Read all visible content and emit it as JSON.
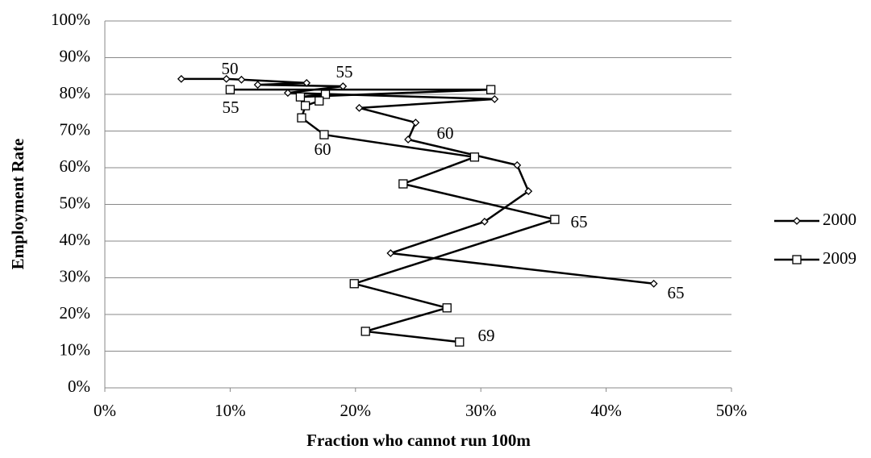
{
  "chart_data": {
    "type": "line-scatter",
    "x_label": "Fraction who cannot run 100m",
    "y_label": "Employment Rate",
    "xlim": [
      0,
      50
    ],
    "ylim": [
      0,
      100
    ],
    "xticks": [
      {
        "value": 0,
        "label": "0%"
      },
      {
        "value": 10,
        "label": "10%"
      },
      {
        "value": 20,
        "label": "20%"
      },
      {
        "value": 30,
        "label": "30%"
      },
      {
        "value": 40,
        "label": "40%"
      },
      {
        "value": 50,
        "label": "50%"
      }
    ],
    "yticks": [
      {
        "value": 0,
        "label": "0%"
      },
      {
        "value": 10,
        "label": "10%"
      },
      {
        "value": 20,
        "label": "20%"
      },
      {
        "value": 30,
        "label": "30%"
      },
      {
        "value": 40,
        "label": "40%"
      },
      {
        "value": 50,
        "label": "50%"
      },
      {
        "value": 60,
        "label": "60%"
      },
      {
        "value": 70,
        "label": "70%"
      },
      {
        "value": 80,
        "label": "80%"
      },
      {
        "value": 90,
        "label": "90%"
      },
      {
        "value": 100,
        "label": "100%"
      }
    ],
    "grid": true,
    "legend": "right",
    "series": [
      {
        "name": "2000",
        "color": "#000000",
        "marker": "diamond",
        "x": [
          6.1,
          9.7,
          10.9,
          16.1,
          12.2,
          19.0,
          14.6,
          31.1,
          20.3,
          24.8,
          24.2,
          32.9,
          33.8,
          30.3,
          22.8,
          43.8
        ],
        "values": [
          84.2,
          84.2,
          84.0,
          83.1,
          82.6,
          82.2,
          80.4,
          78.7,
          76.3,
          72.3,
          67.7,
          60.7,
          53.6,
          45.3,
          36.7,
          28.4
        ]
      },
      {
        "name": "2009",
        "color": "#000000",
        "marker": "square",
        "x": [
          10.0,
          30.8,
          15.6,
          17.6,
          17.1,
          16.0,
          15.7,
          17.5,
          29.5,
          23.8,
          35.9,
          19.9,
          27.3,
          20.8,
          28.3
        ],
        "values": [
          81.3,
          81.3,
          79.3,
          80.0,
          78.2,
          76.9,
          73.6,
          69.0,
          62.9,
          55.6,
          45.9,
          28.4,
          21.8,
          15.4,
          12.5
        ]
      }
    ],
    "annotations": [
      "50",
      "55",
      "55",
      "60",
      "60",
      "65",
      "65",
      "69"
    ]
  }
}
